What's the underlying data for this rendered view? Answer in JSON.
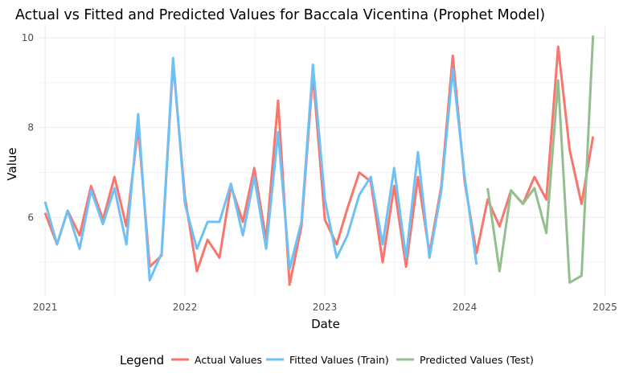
{
  "chart_data": {
    "type": "line",
    "title": "Actual vs Fitted and Predicted Values for Baccala Vicentina (Prophet Model)",
    "xlabel": "Date",
    "ylabel": "Value",
    "x_axis_kind": "date",
    "xlim": [
      "2020-12-15",
      "2024-12-31"
    ],
    "ylim": [
      4.25,
      10.25
    ],
    "x_ticks": [
      {
        "date": "2021-01-01",
        "label": "2021"
      },
      {
        "date": "2022-01-01",
        "label": "2022"
      },
      {
        "date": "2023-01-01",
        "label": "2023"
      },
      {
        "date": "2024-01-01",
        "label": "2024"
      },
      {
        "date": "2025-01-01",
        "label": "2025"
      }
    ],
    "y_ticks": [
      6,
      8,
      10
    ],
    "grid": true,
    "legend": {
      "title": "Legend",
      "position": "bottom"
    },
    "series": [
      {
        "name": "Actual Values",
        "color": "#F8766D",
        "points": [
          [
            "2021-01-01",
            6.1
          ],
          [
            "2021-02-01",
            5.4
          ],
          [
            "2021-03-01",
            6.15
          ],
          [
            "2021-04-01",
            5.6
          ],
          [
            "2021-05-01",
            6.7
          ],
          [
            "2021-06-01",
            5.95
          ],
          [
            "2021-07-01",
            6.9
          ],
          [
            "2021-08-01",
            5.8
          ],
          [
            "2021-09-01",
            8.0
          ],
          [
            "2021-10-01",
            4.9
          ],
          [
            "2021-11-01",
            5.15
          ],
          [
            "2021-12-01",
            9.45
          ],
          [
            "2022-01-01",
            6.45
          ],
          [
            "2022-02-01",
            4.8
          ],
          [
            "2022-03-01",
            5.5
          ],
          [
            "2022-04-01",
            5.1
          ],
          [
            "2022-05-01",
            6.7
          ],
          [
            "2022-06-01",
            5.9
          ],
          [
            "2022-07-01",
            7.1
          ],
          [
            "2022-08-01",
            5.5
          ],
          [
            "2022-09-01",
            8.6
          ],
          [
            "2022-10-01",
            4.5
          ],
          [
            "2022-11-01",
            5.8
          ],
          [
            "2022-12-01",
            9.2
          ],
          [
            "2023-01-01",
            5.95
          ],
          [
            "2023-02-01",
            5.4
          ],
          [
            "2023-03-01",
            6.2
          ],
          [
            "2023-04-01",
            7.0
          ],
          [
            "2023-05-01",
            6.8
          ],
          [
            "2023-06-01",
            5.0
          ],
          [
            "2023-07-01",
            6.7
          ],
          [
            "2023-08-01",
            4.9
          ],
          [
            "2023-09-01",
            6.9
          ],
          [
            "2023-10-01",
            5.2
          ],
          [
            "2023-11-01",
            6.7
          ],
          [
            "2023-12-01",
            9.6
          ],
          [
            "2024-01-01",
            6.8
          ],
          [
            "2024-02-01",
            5.2
          ],
          [
            "2024-03-01",
            6.4
          ],
          [
            "2024-04-01",
            5.8
          ],
          [
            "2024-05-01",
            6.6
          ],
          [
            "2024-06-01",
            6.3
          ],
          [
            "2024-07-01",
            6.9
          ],
          [
            "2024-08-01",
            6.4
          ],
          [
            "2024-09-01",
            9.8
          ],
          [
            "2024-10-01",
            7.5
          ],
          [
            "2024-11-01",
            6.3
          ],
          [
            "2024-12-01",
            7.8
          ]
        ]
      },
      {
        "name": "Fitted Values (Train)",
        "color": "#6EC1F5",
        "points": [
          [
            "2021-01-01",
            6.35
          ],
          [
            "2021-02-01",
            5.4
          ],
          [
            "2021-03-01",
            6.15
          ],
          [
            "2021-04-01",
            5.3
          ],
          [
            "2021-05-01",
            6.6
          ],
          [
            "2021-06-01",
            5.85
          ],
          [
            "2021-07-01",
            6.65
          ],
          [
            "2021-08-01",
            5.4
          ],
          [
            "2021-09-01",
            8.3
          ],
          [
            "2021-10-01",
            4.6
          ],
          [
            "2021-11-01",
            5.2
          ],
          [
            "2021-12-01",
            9.55
          ],
          [
            "2022-01-01",
            6.3
          ],
          [
            "2022-02-01",
            5.3
          ],
          [
            "2022-03-01",
            5.9
          ],
          [
            "2022-04-01",
            5.9
          ],
          [
            "2022-05-01",
            6.75
          ],
          [
            "2022-06-01",
            5.6
          ],
          [
            "2022-07-01",
            6.9
          ],
          [
            "2022-08-01",
            5.3
          ],
          [
            "2022-09-01",
            7.9
          ],
          [
            "2022-10-01",
            4.85
          ],
          [
            "2022-11-01",
            5.9
          ],
          [
            "2022-12-01",
            9.4
          ],
          [
            "2023-01-01",
            6.4
          ],
          [
            "2023-02-01",
            5.1
          ],
          [
            "2023-03-01",
            5.6
          ],
          [
            "2023-04-01",
            6.5
          ],
          [
            "2023-05-01",
            6.9
          ],
          [
            "2023-06-01",
            5.4
          ],
          [
            "2023-07-01",
            7.1
          ],
          [
            "2023-08-01",
            5.1
          ],
          [
            "2023-09-01",
            7.45
          ],
          [
            "2023-10-01",
            5.1
          ],
          [
            "2023-11-01",
            6.6
          ],
          [
            "2023-12-01",
            9.3
          ],
          [
            "2024-01-01",
            6.9
          ],
          [
            "2024-02-01",
            4.95
          ]
        ]
      },
      {
        "name": "Predicted Values (Test)",
        "color": "#93BF8F",
        "points": [
          [
            "2024-03-01",
            6.65
          ],
          [
            "2024-04-01",
            4.8
          ],
          [
            "2024-05-01",
            6.6
          ],
          [
            "2024-06-01",
            6.3
          ],
          [
            "2024-07-01",
            6.65
          ],
          [
            "2024-08-01",
            5.65
          ],
          [
            "2024-09-01",
            9.05
          ],
          [
            "2024-10-01",
            4.55
          ],
          [
            "2024-11-01",
            4.7
          ],
          [
            "2024-12-01",
            10.05
          ]
        ]
      }
    ]
  }
}
